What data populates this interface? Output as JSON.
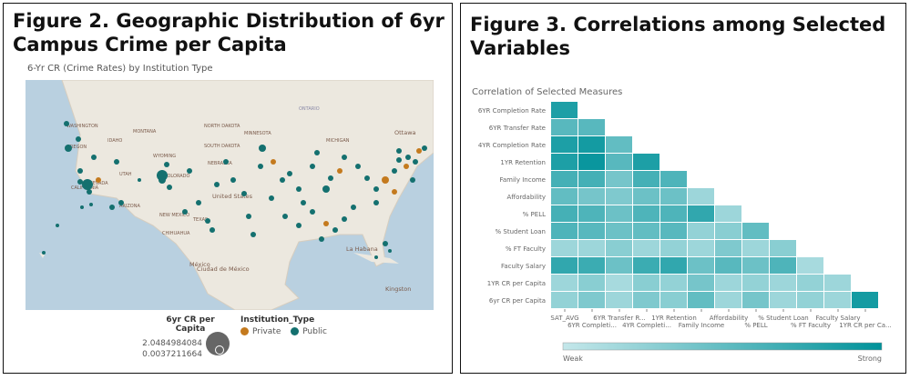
{
  "left": {
    "title": "Figure 2. Geographic Distribution of 6yr Campus Crime per Capita",
    "subtitle": "6-Yr CR (Crime Rates) by Institution Type",
    "map_labels": [
      "WASHINGTON",
      "MONTANA",
      "NORTH DAKOTA",
      "MINNESOTA",
      "ONTARIO",
      "Ottawa",
      "OREGON",
      "IDAHO",
      "SOUTH DAKOTA",
      "WYOMING",
      "MICHIGAN",
      "NEBRASKA",
      "NEVADA",
      "UTAH",
      "COLORADO",
      "United States",
      "CALIFORNIA",
      "ARIZONA",
      "NEW MEXICO",
      "TEXAS",
      "CHIHUAHUA",
      "México",
      "Ciudad de México",
      "La Habana",
      "Kingston"
    ],
    "size_legend": {
      "title": "6yr CR per Capita",
      "max": "2.0484984084",
      "min": "0.0037211664"
    },
    "type_legend": {
      "title": "Institution_Type",
      "items": [
        {
          "label": "Private",
          "color": "#c47a1e"
        },
        {
          "label": "Public",
          "color": "#14706f"
        }
      ]
    }
  },
  "right": {
    "title": "Figure 3. Correlations among Selected Variables"
  },
  "chart_data": {
    "type": "heatmap",
    "title": "Correlation of Selected Measures",
    "rows": [
      "6YR Completion Rate",
      "6YR Transfer Rate",
      "4YR Completion Rate",
      "1YR Retention",
      "Family Income",
      "Affordability",
      "% PELL",
      "% Student Loan",
      "% FT Faculty",
      "Faculty Salary",
      "1YR CR per Capita",
      "6yr CR per Capita"
    ],
    "columns": [
      "SAT_AVG",
      "6YR Completi...",
      "6YR Transfer R...",
      "4YR Completi...",
      "1YR Retention",
      "Family Income",
      "Affordability",
      "% PELL",
      "% Student Loan",
      "% FT Faculty",
      "Faculty Salary",
      "1YR CR per Ca..."
    ],
    "values": [
      [
        0.85
      ],
      [
        0.55,
        0.55
      ],
      [
        0.85,
        0.9,
        0.5
      ],
      [
        0.85,
        0.95,
        0.55,
        0.85
      ],
      [
        0.65,
        0.65,
        0.4,
        0.65,
        0.6
      ],
      [
        0.5,
        0.4,
        0.35,
        0.45,
        0.45,
        0.2
      ],
      [
        0.65,
        0.6,
        0.45,
        0.6,
        0.6,
        0.75,
        0.2
      ],
      [
        0.6,
        0.55,
        0.45,
        0.5,
        0.55,
        0.25,
        0.3,
        0.5
      ],
      [
        0.2,
        0.2,
        0.3,
        0.2,
        0.25,
        0.2,
        0.35,
        0.2,
        0.3
      ],
      [
        0.75,
        0.7,
        0.45,
        0.7,
        0.75,
        0.45,
        0.55,
        0.45,
        0.6,
        0.15
      ],
      [
        0.2,
        0.3,
        0.15,
        0.3,
        0.25,
        0.4,
        0.2,
        0.25,
        0.2,
        0.25,
        0.2
      ],
      [
        0.25,
        0.35,
        0.2,
        0.35,
        0.3,
        0.5,
        0.2,
        0.4,
        0.2,
        0.25,
        0.2,
        0.9
      ]
    ],
    "scale": {
      "min_label": "Weak",
      "max_label": "Strong",
      "min_color": "#c4e7ea",
      "max_color": "#00929a"
    }
  }
}
